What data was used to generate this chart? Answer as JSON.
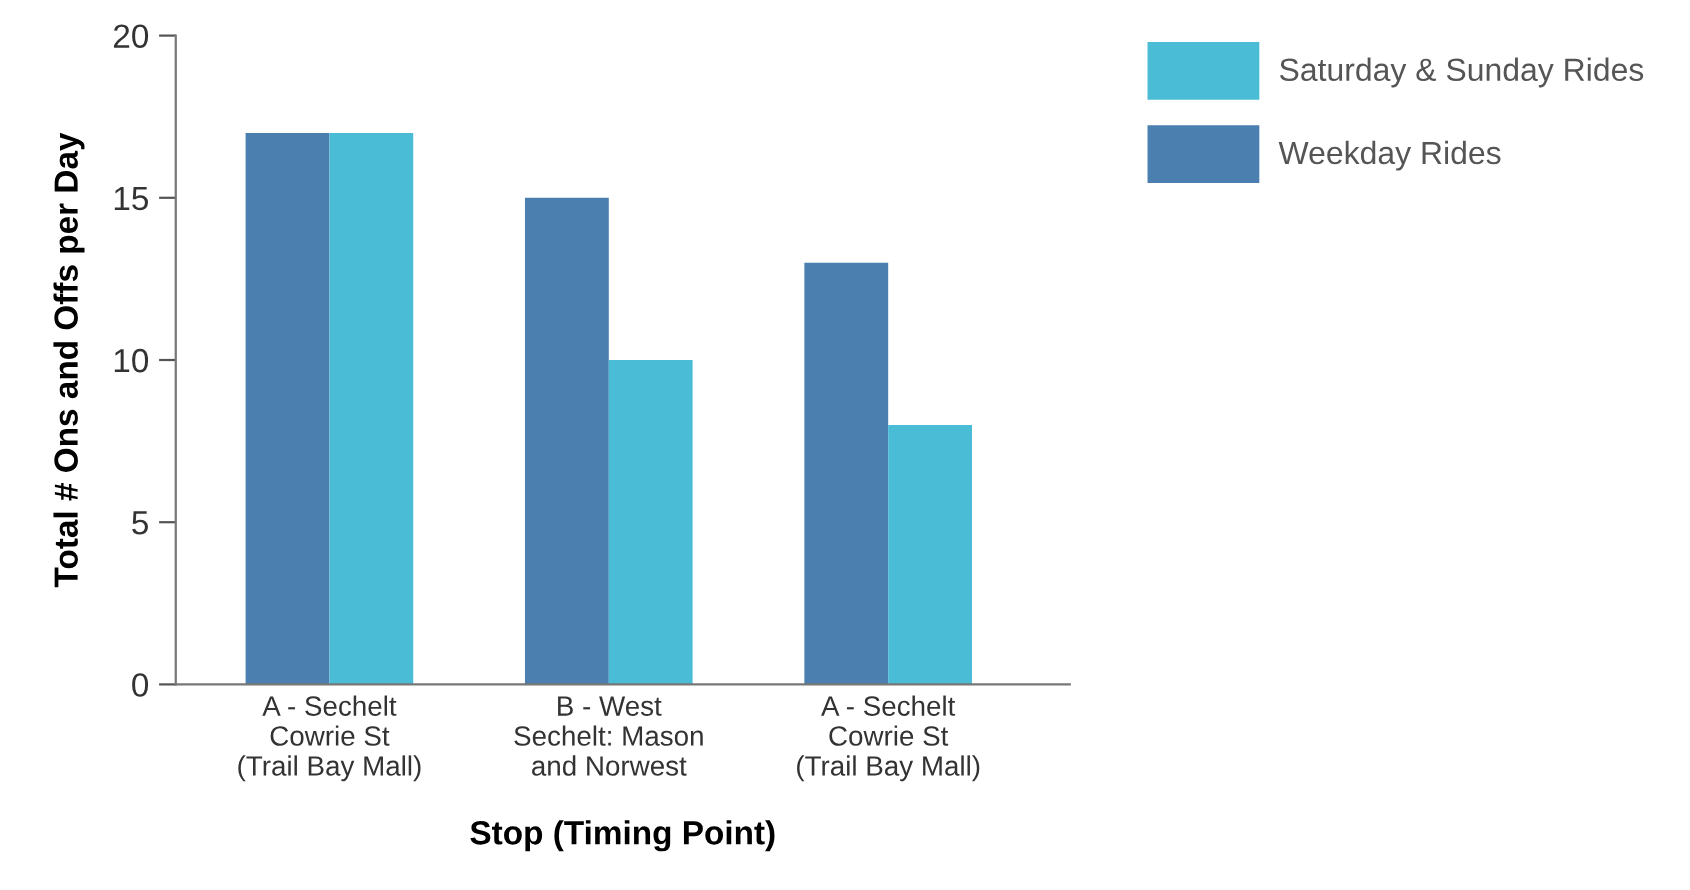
{
  "chart_data": {
    "type": "bar",
    "xlabel": "Stop (Timing Point)",
    "ylabel": "Total # Ons and Offs per Day",
    "categories": [
      "A - Sechelt\nCowrie St\n(Trail Bay Mall)",
      "B - West\nSechelt: Mason\nand Norwest",
      "A - Sechelt\nCowrie St\n(Trail Bay Mall)"
    ],
    "series": [
      {
        "name": "Weekday Rides",
        "color": "#4a7fb0",
        "values": [
          17,
          15,
          13
        ]
      },
      {
        "name": "Saturday & Sunday Rides",
        "color": "#4bbcd6",
        "values": [
          17,
          10,
          8
        ]
      }
    ],
    "ylim": [
      0,
      20
    ],
    "yticks": [
      0,
      5,
      10,
      15,
      20
    ],
    "grid": false,
    "legend": "right"
  }
}
